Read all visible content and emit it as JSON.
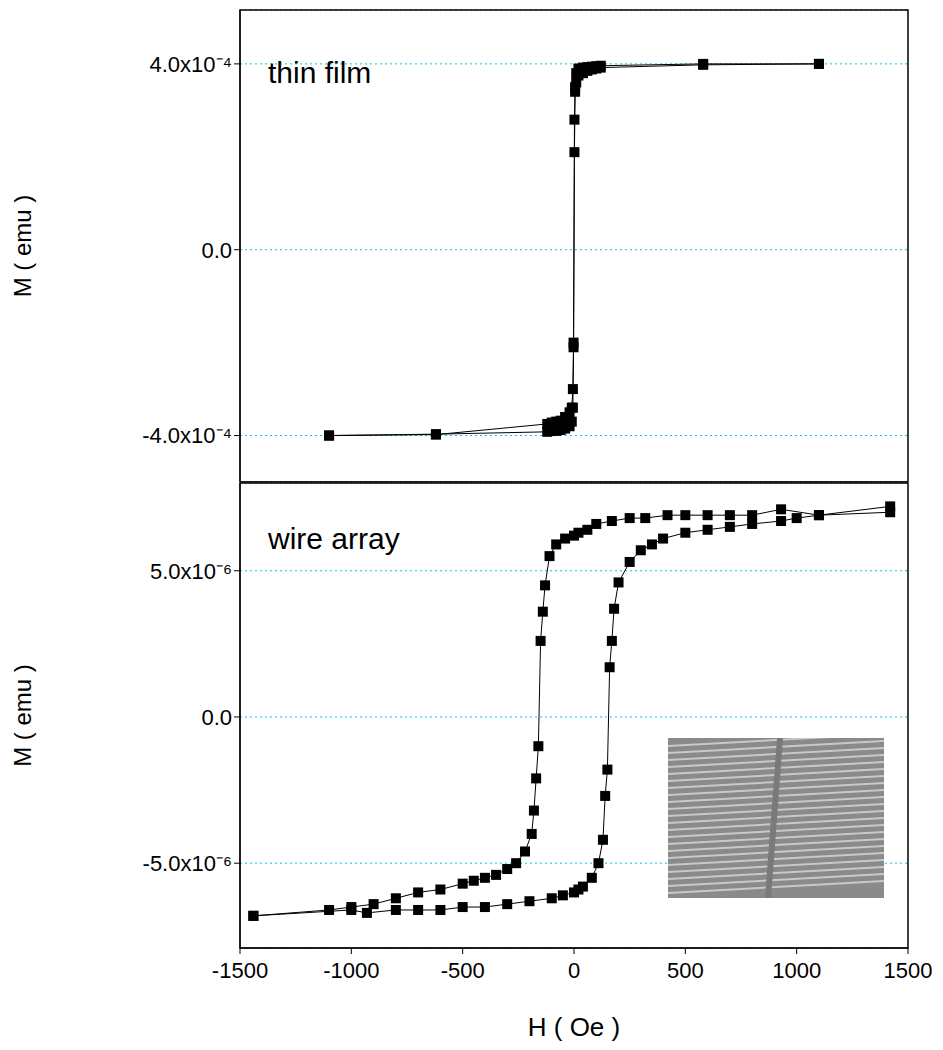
{
  "chart_data": [
    {
      "type": "line",
      "annotation": "thin film",
      "y_label": "M ( emu )",
      "xlim": [
        -1500,
        1500
      ],
      "xticks": [
        -1500,
        -1000,
        -500,
        0,
        500,
        1000,
        1500
      ],
      "ylim": [
        -0.0005,
        0.000516
      ],
      "yticks": [
        {
          "value": -0.0004,
          "label": "-4.0x10⁻⁴"
        },
        {
          "value": 0,
          "label": "0.0"
        },
        {
          "value": 0.0004,
          "label": "4.0x10⁻⁴"
        }
      ],
      "grid": true,
      "tick_labels": "y",
      "series": [
        {
          "color": "#000000",
          "marker": "square",
          "line_style": "solid",
          "x": [
            1100,
            580,
            120,
            100,
            80,
            60,
            40,
            20,
            10,
            5,
            2,
            -2,
            -5,
            -10,
            -20,
            -40,
            -60,
            -80,
            -100,
            -120,
            -620,
            -1100
          ],
          "values": [
            0.0004,
            0.0004,
            0.000396,
            0.000395,
            0.000394,
            0.000393,
            0.000392,
            0.00039,
            0.00038,
            0.00035,
            0.00028,
            -0.00021,
            -0.00034,
            -0.00037,
            -0.00038,
            -0.000385,
            -0.000388,
            -0.00039,
            -0.00039,
            -0.000392,
            -0.000397,
            -0.0004
          ]
        },
        {
          "color": "#000000",
          "marker": "square",
          "line_style": "solid",
          "x": [
            -1100,
            -620,
            -120,
            -100,
            -80,
            -60,
            -40,
            -20,
            -10,
            -5,
            -2,
            2,
            5,
            10,
            20,
            40,
            60,
            80,
            100,
            120,
            580,
            1100
          ],
          "values": [
            -0.0004,
            -0.000398,
            -0.000375,
            -0.000372,
            -0.00037,
            -0.000368,
            -0.00036,
            -0.00035,
            -0.00034,
            -0.0003,
            -0.0002,
            0.00021,
            0.00034,
            0.00036,
            0.000375,
            0.00038,
            0.000385,
            0.000388,
            0.00039,
            0.000392,
            0.000398,
            0.0004
          ]
        }
      ]
    },
    {
      "type": "line",
      "annotation": "wire array",
      "y_label": "M ( emu )",
      "x_label": "H ( Oe )",
      "xlim": [
        -1500,
        1500
      ],
      "xticks": [
        -1500,
        -1000,
        -500,
        0,
        500,
        1000,
        1500
      ],
      "ylim": [
        -7.9e-06,
        8e-06
      ],
      "yticks": [
        {
          "value": -5e-06,
          "label": "-5.0x10⁻⁶"
        },
        {
          "value": 0,
          "label": "0.0"
        },
        {
          "value": 5e-06,
          "label": "5.0x10⁻⁶"
        }
      ],
      "grid": true,
      "series": [
        {
          "color": "#000000",
          "marker": "square",
          "line_style": "solid",
          "x": [
            1420,
            1100,
            930,
            800,
            700,
            600,
            500,
            420,
            320,
            250,
            170,
            100,
            60,
            20,
            0,
            -40,
            -80,
            -110,
            -130,
            -140,
            -150,
            -160,
            -170,
            -180,
            -190,
            -220,
            -260,
            -300,
            -350,
            -400,
            -450,
            -500,
            -600,
            -700,
            -800,
            -900,
            -1000,
            -1100,
            -1440
          ],
          "values": [
            7.2e-06,
            6.9e-06,
            7.1e-06,
            6.9e-06,
            6.9e-06,
            6.9e-06,
            6.9e-06,
            6.9e-06,
            6.8e-06,
            6.8e-06,
            6.7e-06,
            6.6e-06,
            6.4e-06,
            6.3e-06,
            6.2e-06,
            6.1e-06,
            5.9e-06,
            5.5e-06,
            4.5e-06,
            3.6e-06,
            2.6e-06,
            -1e-06,
            -2.1e-06,
            -3.2e-06,
            -4e-06,
            -4.6e-06,
            -5e-06,
            -5.2e-06,
            -5.4e-06,
            -5.5e-06,
            -5.6e-06,
            -5.7e-06,
            -5.9e-06,
            -6e-06,
            -6.2e-06,
            -6.4e-06,
            -6.5e-06,
            -6.6e-06,
            -6.8e-06
          ]
        },
        {
          "color": "#000000",
          "marker": "square",
          "line_style": "solid",
          "x": [
            -1440,
            -1000,
            -930,
            -800,
            -700,
            -600,
            -500,
            -400,
            -300,
            -200,
            -100,
            -50,
            0,
            20,
            40,
            80,
            110,
            130,
            140,
            150,
            160,
            170,
            180,
            200,
            250,
            300,
            350,
            400,
            500,
            600,
            700,
            800,
            930,
            1000,
            1100,
            1420
          ],
          "values": [
            -6.8e-06,
            -6.6e-06,
            -6.7e-06,
            -6.6e-06,
            -6.6e-06,
            -6.6e-06,
            -6.5e-06,
            -6.5e-06,
            -6.4e-06,
            -6.3e-06,
            -6.2e-06,
            -6.1e-06,
            -6e-06,
            -5.9e-06,
            -5.8e-06,
            -5.5e-06,
            -5e-06,
            -4.2e-06,
            -2.7e-06,
            -1.8e-06,
            1.7e-06,
            2.6e-06,
            3.7e-06,
            4.6e-06,
            5.3e-06,
            5.7e-06,
            5.9e-06,
            6.1e-06,
            6.3e-06,
            6.4e-06,
            6.5e-06,
            6.6e-06,
            6.7e-06,
            6.8e-06,
            6.9e-06,
            7e-06
          ]
        }
      ]
    }
  ]
}
